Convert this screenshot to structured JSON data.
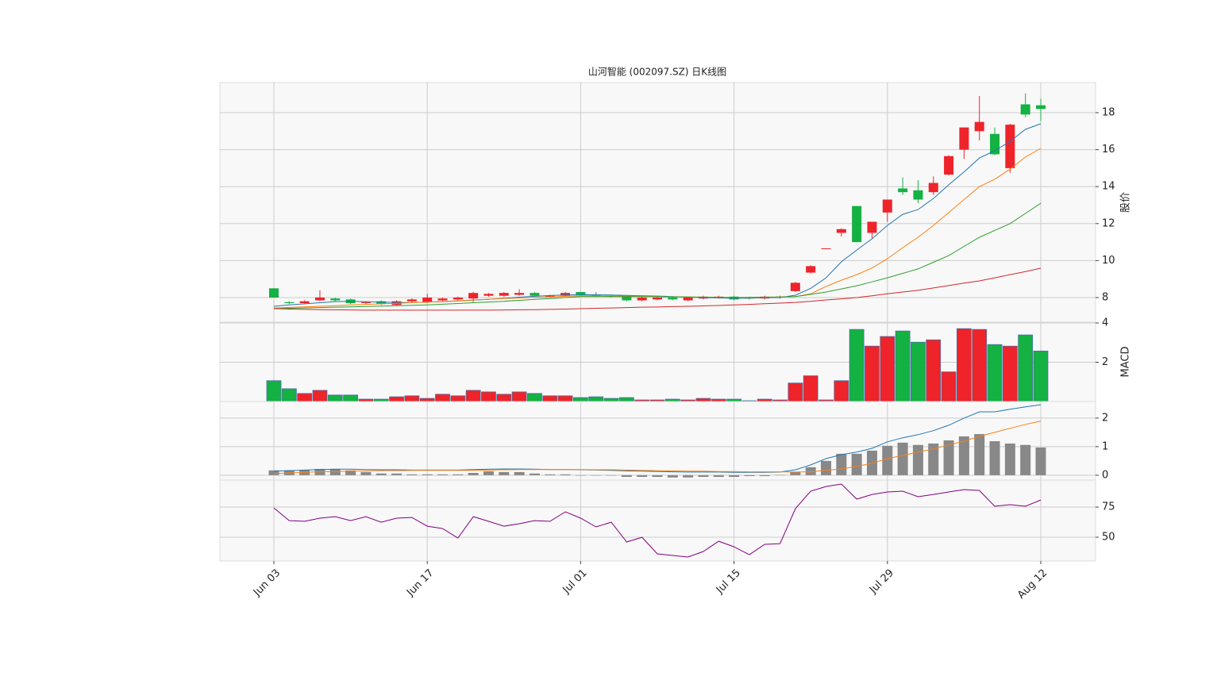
{
  "chart_data": [
    {
      "type": "candlestick",
      "title": "山河智能 (002097.SZ) 日K线图",
      "ylabel": "股价",
      "categories": [
        "Jun 03",
        null,
        null,
        null,
        null,
        null,
        null,
        null,
        null,
        null,
        "Jun 17",
        null,
        null,
        null,
        null,
        null,
        null,
        null,
        null,
        null,
        "Jul 01",
        null,
        null,
        null,
        null,
        null,
        null,
        null,
        null,
        null,
        "Jul 15",
        null,
        null,
        null,
        null,
        null,
        null,
        null,
        null,
        null,
        "Jul 29",
        null,
        null,
        null,
        null,
        null,
        null,
        null,
        null,
        null,
        "Aug 12"
      ],
      "open": [
        8.5,
        7.75,
        7.7,
        7.85,
        7.95,
        7.9,
        7.7,
        7.8,
        7.6,
        7.8,
        7.75,
        7.85,
        7.9,
        7.95,
        8.1,
        8.1,
        8.15,
        8.25,
        8.05,
        8.1,
        8.3,
        8.15,
        8.1,
        8.05,
        7.85,
        7.9,
        8.0,
        7.85,
        7.95,
        8.0,
        8.05,
        8.0,
        7.95,
        8.0,
        8.35,
        9.35,
        10.66,
        11.5,
        12.95,
        11.5,
        12.6,
        13.9,
        13.8,
        13.7,
        14.65,
        16.0,
        17.0,
        16.85,
        15.0,
        18.45,
        18.4
      ],
      "high": [
        8.5,
        7.8,
        7.85,
        8.4,
        8.0,
        7.95,
        7.8,
        7.85,
        7.85,
        7.95,
        8.2,
        8.0,
        8.05,
        8.3,
        8.25,
        8.3,
        8.45,
        8.3,
        8.15,
        8.3,
        8.3,
        8.3,
        8.15,
        8.1,
        8.05,
        8.05,
        8.05,
        8.05,
        8.1,
        8.1,
        8.1,
        8.05,
        8.1,
        8.1,
        8.85,
        9.75,
        10.66,
        11.75,
        12.95,
        12.1,
        13.3,
        14.5,
        14.35,
        14.55,
        15.7,
        17.2,
        18.9,
        17.2,
        17.4,
        19.05,
        18.75
      ],
      "low": [
        8.0,
        7.65,
        7.65,
        7.8,
        7.8,
        7.65,
        7.65,
        7.6,
        7.55,
        7.75,
        7.7,
        7.8,
        7.85,
        7.75,
        8.05,
        8.05,
        8.1,
        8.05,
        8.0,
        8.05,
        8.1,
        8.05,
        8.0,
        7.8,
        7.8,
        7.85,
        7.85,
        7.8,
        7.9,
        7.95,
        7.85,
        7.9,
        7.9,
        7.95,
        8.3,
        9.3,
        10.66,
        11.3,
        11.0,
        11.2,
        12.1,
        13.55,
        13.1,
        13.55,
        14.6,
        15.5,
        16.5,
        15.7,
        14.75,
        17.75,
        17.55
      ],
      "close": [
        8.0,
        7.7,
        7.8,
        8.0,
        7.85,
        7.7,
        7.75,
        7.65,
        7.8,
        7.9,
        8.0,
        7.95,
        8.0,
        8.25,
        8.2,
        8.25,
        8.25,
        8.1,
        8.1,
        8.25,
        8.15,
        8.1,
        8.05,
        7.85,
        8.0,
        8.0,
        7.9,
        8.0,
        8.05,
        8.05,
        7.9,
        7.95,
        8.05,
        8.05,
        8.8,
        9.7,
        10.66,
        11.7,
        11.0,
        12.1,
        13.3,
        13.7,
        13.3,
        14.2,
        15.65,
        17.2,
        17.5,
        15.75,
        17.35,
        17.9,
        18.2
      ],
      "up_color": "#ef232a",
      "down_color": "#14b143",
      "series": [
        {
          "color": "#1f77b4",
          "values": [
            7.53,
            7.6,
            7.66,
            7.72,
            7.78,
            7.8,
            7.78,
            7.75,
            7.73,
            7.73,
            7.75,
            7.78,
            7.82,
            7.86,
            7.9,
            7.96,
            8.02,
            8.07,
            8.11,
            8.14,
            8.15,
            8.15,
            8.14,
            8.12,
            8.1,
            8.08,
            8.05,
            8.02,
            8.0,
            7.98,
            7.96,
            7.97,
            7.99,
            8.0,
            8.13,
            8.5,
            9.07,
            9.93,
            10.57,
            11.18,
            11.9,
            12.5,
            12.76,
            13.36,
            14.1,
            14.8,
            15.55,
            15.94,
            16.45,
            17.1,
            17.4
          ]
        },
        {
          "color": "#ff7f0e",
          "values": [
            7.44,
            7.47,
            7.5,
            7.53,
            7.56,
            7.6,
            7.63,
            7.66,
            7.69,
            7.72,
            7.75,
            7.79,
            7.83,
            7.87,
            7.91,
            7.95,
            7.98,
            8.01,
            8.04,
            8.07,
            8.1,
            8.1,
            8.09,
            8.08,
            8.07,
            8.05,
            8.04,
            8.03,
            8.02,
            8.01,
            8.0,
            8.0,
            8.01,
            8.02,
            8.05,
            8.2,
            8.6,
            8.94,
            9.24,
            9.6,
            10.1,
            10.7,
            11.26,
            11.9,
            12.6,
            13.3,
            14.0,
            14.4,
            14.95,
            15.6,
            16.07
          ]
        },
        {
          "color": "#2ca02c",
          "values": [
            7.4,
            7.42,
            7.44,
            7.46,
            7.48,
            7.5,
            7.52,
            7.54,
            7.56,
            7.58,
            7.6,
            7.64,
            7.68,
            7.72,
            7.76,
            7.8,
            7.85,
            7.9,
            7.95,
            8.0,
            8.05,
            8.05,
            8.05,
            8.05,
            8.05,
            8.05,
            8.04,
            8.03,
            8.02,
            8.01,
            8.0,
            8.01,
            8.02,
            8.03,
            8.05,
            8.17,
            8.3,
            8.47,
            8.64,
            8.85,
            9.07,
            9.31,
            9.55,
            9.91,
            10.27,
            10.77,
            11.26,
            11.63,
            12.0,
            12.55,
            13.1
          ]
        },
        {
          "color": "#d62728",
          "values": [
            7.4,
            7.38,
            7.36,
            7.35,
            7.34,
            7.33,
            7.32,
            7.32,
            7.32,
            7.32,
            7.32,
            7.32,
            7.32,
            7.32,
            7.32,
            7.33,
            7.34,
            7.35,
            7.36,
            7.38,
            7.4,
            7.42,
            7.44,
            7.46,
            7.48,
            7.49,
            7.51,
            7.53,
            7.55,
            7.57,
            7.6,
            7.63,
            7.67,
            7.7,
            7.74,
            7.8,
            7.87,
            7.93,
            8.0,
            8.1,
            8.2,
            8.3,
            8.39,
            8.52,
            8.65,
            8.78,
            8.9,
            9.07,
            9.24,
            9.41,
            9.59
          ]
        }
      ],
      "ylim": [
        6.67,
        19.63
      ],
      "yticks": [
        8,
        10,
        12,
        14,
        16,
        18
      ],
      "grid": true
    },
    {
      "type": "bar",
      "ylabel": "MACD",
      "edge_color": "#4a6fa5",
      "values": [
        1.06,
        0.65,
        0.41,
        0.57,
        0.33,
        0.33,
        0.12,
        0.12,
        0.24,
        0.29,
        0.16,
        0.37,
        0.29,
        0.57,
        0.49,
        0.37,
        0.49,
        0.41,
        0.29,
        0.29,
        0.2,
        0.24,
        0.16,
        0.2,
        0.08,
        0.08,
        0.12,
        0.08,
        0.16,
        0.12,
        0.12,
        0.04,
        0.12,
        0.08,
        0.94,
        1.31,
        0.08,
        1.06,
        3.67,
        2.82,
        3.31,
        3.59,
        3.02,
        3.14,
        1.51,
        3.71,
        3.67,
        2.9,
        2.82,
        3.39,
        2.57
      ],
      "ylim": [
        0,
        4.04
      ],
      "yticks": [
        2,
        4
      ],
      "grid": true
    },
    {
      "type": "macd",
      "histogram": {
        "color": "#888888",
        "values": [
          0.17,
          0.17,
          0.19,
          0.22,
          0.22,
          0.17,
          0.11,
          0.06,
          0.06,
          0.03,
          0.03,
          0.03,
          0.03,
          0.08,
          0.14,
          0.11,
          0.11,
          0.06,
          0.03,
          0.03,
          0,
          0,
          -0.01,
          -0.06,
          -0.06,
          -0.06,
          -0.08,
          -0.08,
          -0.06,
          -0.06,
          -0.06,
          -0.03,
          -0.03,
          0.01,
          0.11,
          0.28,
          0.5,
          0.75,
          0.75,
          0.86,
          1.03,
          1.14,
          1.06,
          1.11,
          1.22,
          1.36,
          1.44,
          1.19,
          1.11,
          1.06,
          0.97
        ]
      },
      "series": [
        {
          "color": "#1f77b4",
          "values": [
            0.14,
            0.16,
            0.18,
            0.2,
            0.21,
            0.21,
            0.2,
            0.19,
            0.19,
            0.18,
            0.18,
            0.18,
            0.18,
            0.2,
            0.21,
            0.22,
            0.22,
            0.21,
            0.2,
            0.2,
            0.19,
            0.18,
            0.17,
            0.15,
            0.14,
            0.13,
            0.12,
            0.11,
            0.11,
            0.11,
            0.1,
            0.1,
            0.1,
            0.11,
            0.19,
            0.36,
            0.58,
            0.72,
            0.81,
            0.94,
            1.17,
            1.31,
            1.42,
            1.56,
            1.75,
            2.0,
            2.22,
            2.22,
            2.31,
            2.39,
            2.47
          ]
        },
        {
          "color": "#ff7f0e",
          "values": [
            0.06,
            0.08,
            0.1,
            0.12,
            0.13,
            0.14,
            0.15,
            0.16,
            0.16,
            0.17,
            0.17,
            0.17,
            0.17,
            0.17,
            0.18,
            0.19,
            0.2,
            0.2,
            0.2,
            0.2,
            0.2,
            0.19,
            0.19,
            0.18,
            0.17,
            0.16,
            0.15,
            0.14,
            0.14,
            0.13,
            0.13,
            0.12,
            0.12,
            0.12,
            0.11,
            0.12,
            0.17,
            0.22,
            0.31,
            0.42,
            0.58,
            0.69,
            0.81,
            0.92,
            1.06,
            1.19,
            1.36,
            1.5,
            1.64,
            1.78,
            1.89
          ]
        }
      ],
      "ylim": [
        -0.17,
        2.58
      ],
      "yticks": [
        0,
        1,
        2
      ],
      "grid": true
    },
    {
      "type": "line",
      "series": [
        {
          "color": "#800080",
          "values": [
            74.3,
            63.8,
            63.2,
            65.8,
            67.1,
            63.8,
            67.1,
            62.5,
            65.8,
            66.4,
            59.2,
            57.2,
            49.3,
            67.1,
            63.2,
            59.2,
            61.2,
            63.8,
            63.2,
            71.1,
            65.8,
            58.6,
            62.5,
            46.1,
            50.0,
            36.2,
            34.9,
            33.6,
            38.2,
            46.7,
            42.1,
            35.5,
            44.1,
            44.7,
            73.7,
            88.2,
            92.1,
            94.1,
            81.6,
            85.5,
            87.5,
            88.2,
            83.6,
            85.5,
            87.5,
            89.5,
            88.8,
            75.7,
            77.0,
            75.7,
            80.9
          ]
        }
      ],
      "ylim": [
        30.3,
        97.4
      ],
      "yticks": [
        50,
        75
      ],
      "grid": true
    }
  ]
}
